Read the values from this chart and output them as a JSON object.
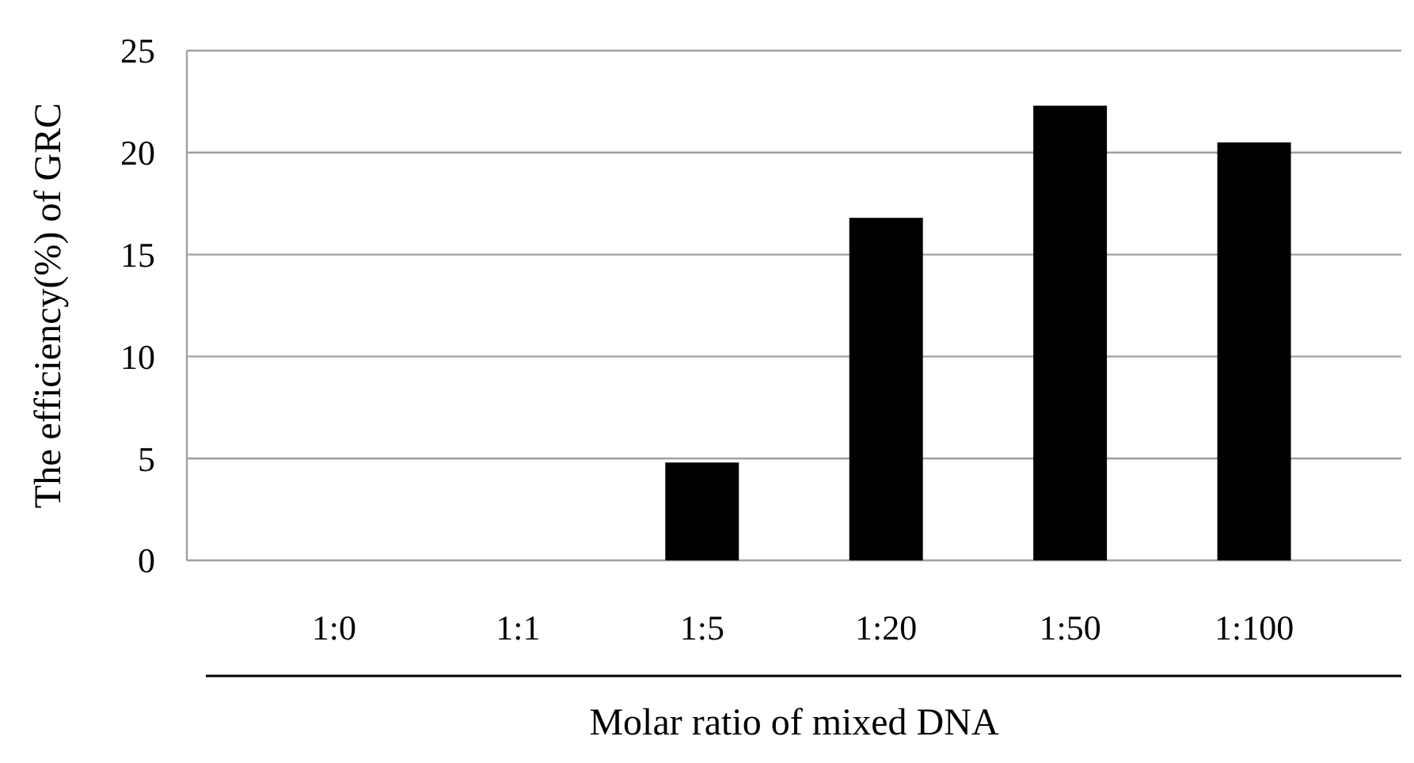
{
  "chart_data": {
    "type": "bar",
    "xlabel": "Molar ratio of mixed DNA",
    "ylabel": "The efficiency(%) of GRC",
    "categories": [
      "1:0",
      "1:1",
      "1:5",
      "1:20",
      "1:50",
      "1:100"
    ],
    "values": [
      0,
      0,
      4.8,
      16.8,
      22.3,
      20.5
    ],
    "color": "#000000",
    "ylim": [
      0,
      25
    ],
    "yticks": [
      0,
      5,
      10,
      15,
      20,
      25
    ],
    "grid": "y"
  }
}
